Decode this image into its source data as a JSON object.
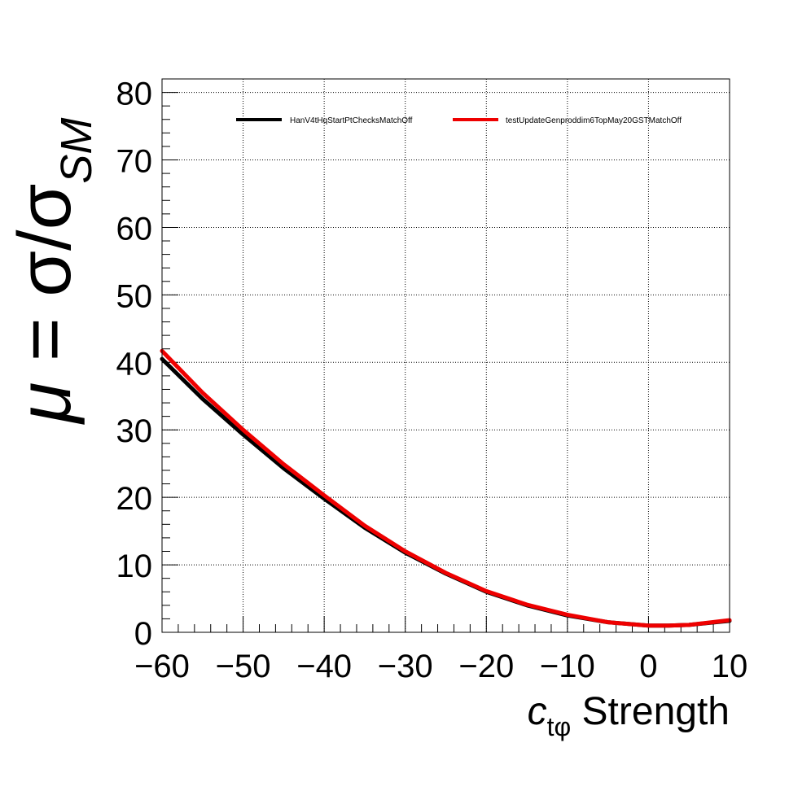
{
  "chart_data": {
    "type": "line",
    "title": "",
    "xlabel_main": "c",
    "xlabel_sub": "tφ",
    "xlabel_rest": " Strength",
    "ylabel_mu": "μ",
    "ylabel_eq": " = σ/σ",
    "ylabel_sub": "SM",
    "xlim": [
      -60,
      10
    ],
    "ylim": [
      0,
      82
    ],
    "xticks": [
      -60,
      -50,
      -40,
      -30,
      -20,
      -10,
      0,
      10
    ],
    "xtick_labels": [
      "−60",
      "−50",
      "−40",
      "−30",
      "−20",
      "−10",
      "0",
      "10"
    ],
    "yticks": [
      0,
      10,
      20,
      30,
      40,
      50,
      60,
      70,
      80
    ],
    "ytick_labels": [
      "0",
      "10",
      "20",
      "30",
      "40",
      "50",
      "60",
      "70",
      "80"
    ],
    "grid": true,
    "legend_position": "top",
    "series": [
      {
        "name": "HanV4tHqStartPtChecksMatchOff",
        "color": "#000000",
        "x": [
          -60,
          -55,
          -50,
          -45,
          -40,
          -35,
          -30,
          -25,
          -20,
          -15,
          -10,
          -5,
          0,
          2.5,
          5,
          10
        ],
        "y": [
          40.5,
          34.6,
          29.3,
          24.3,
          19.8,
          15.5,
          11.8,
          8.7,
          6.0,
          4.0,
          2.5,
          1.5,
          1.0,
          1.0,
          1.1,
          1.7
        ]
      },
      {
        "name": "testUpdateGenproddim6TopMay20GSTMatchOff",
        "color": "#ee0000",
        "x": [
          -60,
          -55,
          -50,
          -45,
          -40,
          -35,
          -30,
          -25,
          -20,
          -15,
          -10,
          -5,
          0,
          2.5,
          5,
          10
        ],
        "y": [
          41.7,
          35.5,
          30.0,
          24.9,
          20.3,
          15.8,
          12.0,
          8.8,
          6.1,
          4.1,
          2.6,
          1.5,
          1.0,
          1.0,
          1.1,
          1.8
        ]
      }
    ]
  }
}
